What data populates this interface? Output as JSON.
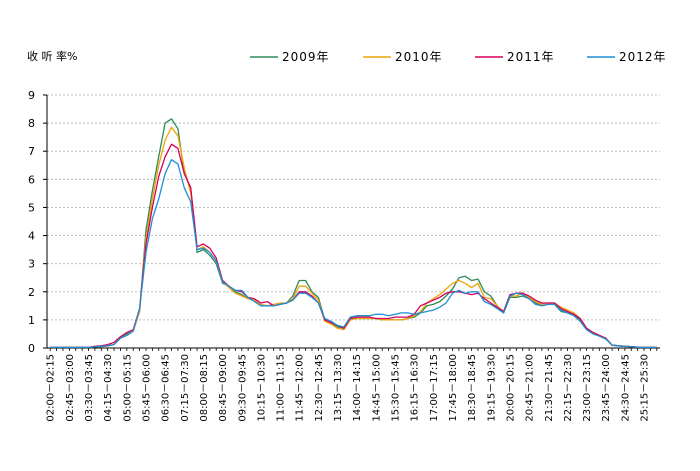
{
  "chart_data": {
    "type": "line",
    "ylabel": "收 听 率%",
    "ylim": [
      0,
      9
    ],
    "yticks": [
      0,
      1,
      2,
      3,
      4,
      5,
      6,
      7,
      8,
      9
    ],
    "grid": "horizontal-dashed",
    "legend_position": "top",
    "x_tick_labels": [
      "02:00－02:15",
      "02:45－03:00",
      "03:30－03:45",
      "04:15－04:30",
      "05:00－05:15",
      "05:45－06:00",
      "06:30－06:45",
      "07:15－07:30",
      "08:00－08:15",
      "08:45－09:00",
      "09:30－09:45",
      "10:15－10:30",
      "11:00－11:15",
      "11:45－12:00",
      "12:30－12:45",
      "13:15－13:30",
      "14:00－14:15",
      "14:45－15:00",
      "15:30－15:45",
      "16:15－16:30",
      "17:00－17:15",
      "17:45－18:00",
      "18:30－18:45",
      "19:15－19:30",
      "20:00－20:15",
      "20:45－21:00",
      "21:30－21:45",
      "22:15－22:30",
      "23:00－23:15",
      "23:45－24:00",
      "24:30－24:45",
      "25:15－25:30"
    ],
    "tick_every": 3,
    "series": [
      {
        "name": "2009年",
        "color": "#2e8b57",
        "values": [
          0.02,
          0.02,
          0.02,
          0.02,
          0.02,
          0.02,
          0.02,
          0.05,
          0.05,
          0.08,
          0.12,
          0.35,
          0.5,
          0.6,
          1.3,
          4.2,
          5.6,
          6.8,
          8.0,
          8.15,
          7.8,
          6.2,
          5.7,
          3.4,
          3.5,
          3.3,
          3.0,
          2.3,
          2.2,
          2.0,
          1.9,
          1.75,
          1.7,
          1.5,
          1.5,
          1.5,
          1.55,
          1.6,
          1.85,
          2.4,
          2.4,
          2.0,
          1.8,
          1.0,
          0.9,
          0.75,
          0.7,
          1.05,
          1.05,
          1.05,
          1.05,
          1.05,
          1.0,
          1.0,
          1.0,
          1.0,
          1.05,
          1.1,
          1.25,
          1.5,
          1.55,
          1.65,
          1.85,
          2.1,
          2.5,
          2.55,
          2.4,
          2.45,
          2.0,
          1.85,
          1.5,
          1.25,
          1.8,
          1.8,
          1.85,
          1.75,
          1.6,
          1.5,
          1.55,
          1.55,
          1.3,
          1.25,
          1.2,
          1.0,
          0.7,
          0.55,
          0.45,
          0.35,
          0.1,
          0.08,
          0.06,
          0.05,
          0.02,
          0.02,
          0.02,
          0.02
        ]
      },
      {
        "name": "2010年",
        "color": "#f0a30a",
        "values": [
          0.02,
          0.02,
          0.02,
          0.02,
          0.02,
          0.02,
          0.02,
          0.05,
          0.05,
          0.08,
          0.12,
          0.35,
          0.45,
          0.6,
          1.3,
          3.9,
          5.3,
          6.5,
          7.4,
          7.85,
          7.55,
          6.4,
          5.5,
          3.5,
          3.6,
          3.4,
          3.1,
          2.35,
          2.15,
          1.95,
          1.85,
          1.75,
          1.7,
          1.55,
          1.5,
          1.55,
          1.6,
          1.6,
          1.75,
          2.2,
          2.2,
          1.95,
          1.7,
          0.95,
          0.85,
          0.7,
          0.65,
          1.0,
          1.05,
          1.05,
          1.05,
          1.05,
          1.0,
          1.0,
          1.0,
          1.0,
          1.05,
          1.15,
          1.3,
          1.6,
          1.75,
          1.9,
          2.1,
          2.3,
          2.4,
          2.3,
          2.15,
          2.3,
          1.8,
          1.75,
          1.5,
          1.3,
          1.85,
          1.85,
          1.95,
          1.8,
          1.65,
          1.55,
          1.6,
          1.6,
          1.45,
          1.35,
          1.25,
          1.05,
          0.7,
          0.55,
          0.45,
          0.35,
          0.1,
          0.08,
          0.06,
          0.05,
          0.02,
          0.02,
          0.02,
          0.02
        ]
      },
      {
        "name": "2011年",
        "color": "#d6005a",
        "values": [
          0.02,
          0.02,
          0.02,
          0.02,
          0.02,
          0.02,
          0.02,
          0.06,
          0.08,
          0.12,
          0.2,
          0.4,
          0.55,
          0.65,
          1.4,
          3.7,
          5.0,
          6.1,
          6.8,
          7.25,
          7.1,
          6.2,
          5.7,
          3.6,
          3.7,
          3.55,
          3.2,
          2.4,
          2.2,
          2.05,
          2.0,
          1.8,
          1.75,
          1.6,
          1.65,
          1.5,
          1.55,
          1.6,
          1.7,
          2.0,
          2.0,
          1.85,
          1.6,
          1.0,
          0.9,
          0.8,
          0.7,
          1.05,
          1.1,
          1.1,
          1.1,
          1.05,
          1.05,
          1.05,
          1.1,
          1.1,
          1.1,
          1.2,
          1.5,
          1.6,
          1.7,
          1.8,
          1.95,
          2.0,
          2.0,
          1.95,
          1.9,
          1.95,
          1.75,
          1.6,
          1.45,
          1.3,
          1.9,
          1.95,
          1.95,
          1.85,
          1.7,
          1.6,
          1.6,
          1.6,
          1.4,
          1.3,
          1.2,
          1.05,
          0.7,
          0.55,
          0.45,
          0.35,
          0.1,
          0.08,
          0.06,
          0.05,
          0.03,
          0.02,
          0.02,
          0.02
        ]
      },
      {
        "name": "2012年",
        "color": "#1f8fd6",
        "values": [
          0.02,
          0.02,
          0.02,
          0.02,
          0.02,
          0.02,
          0.02,
          0.04,
          0.06,
          0.08,
          0.12,
          0.35,
          0.45,
          0.6,
          1.4,
          3.4,
          4.6,
          5.3,
          6.2,
          6.7,
          6.55,
          5.7,
          5.2,
          3.5,
          3.55,
          3.4,
          3.1,
          2.35,
          2.2,
          2.05,
          2.05,
          1.8,
          1.65,
          1.5,
          1.5,
          1.5,
          1.55,
          1.6,
          1.7,
          1.95,
          1.95,
          1.8,
          1.6,
          1.05,
          0.95,
          0.8,
          0.75,
          1.1,
          1.15,
          1.15,
          1.15,
          1.2,
          1.2,
          1.15,
          1.2,
          1.25,
          1.25,
          1.2,
          1.25,
          1.3,
          1.35,
          1.45,
          1.6,
          1.95,
          2.05,
          1.95,
          2.0,
          2.0,
          1.65,
          1.55,
          1.4,
          1.25,
          1.85,
          1.95,
          1.9,
          1.75,
          1.55,
          1.5,
          1.55,
          1.55,
          1.35,
          1.25,
          1.15,
          0.95,
          0.65,
          0.5,
          0.42,
          0.32,
          0.1,
          0.08,
          0.06,
          0.05,
          0.03,
          0.02,
          0.02,
          0.02
        ]
      }
    ]
  }
}
